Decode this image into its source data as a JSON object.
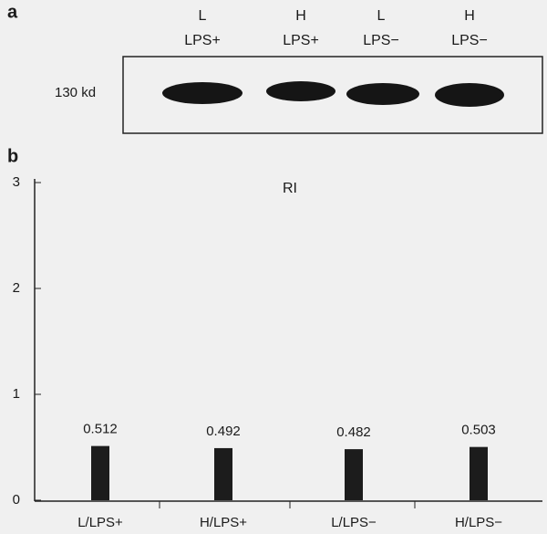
{
  "blot": {
    "panel_label": "a",
    "marker": "130 kd",
    "lanes": [
      {
        "dose": "L",
        "treatment": "LPS+"
      },
      {
        "dose": "H",
        "treatment": "LPS+"
      },
      {
        "dose": "L",
        "treatment": "LPS−"
      },
      {
        "dose": "H",
        "treatment": "LPS−"
      }
    ]
  },
  "chart_data": {
    "type": "bar",
    "panel_label": "b",
    "title": "RI",
    "categories": [
      "L/LPS+",
      "H/LPS+",
      "L/LPS−",
      "H/LPS−"
    ],
    "values": [
      0.512,
      0.492,
      0.482,
      0.503
    ],
    "color": "#1c1c1c",
    "ylim": [
      0,
      3
    ],
    "yticks": [
      0,
      1,
      2,
      3
    ]
  }
}
